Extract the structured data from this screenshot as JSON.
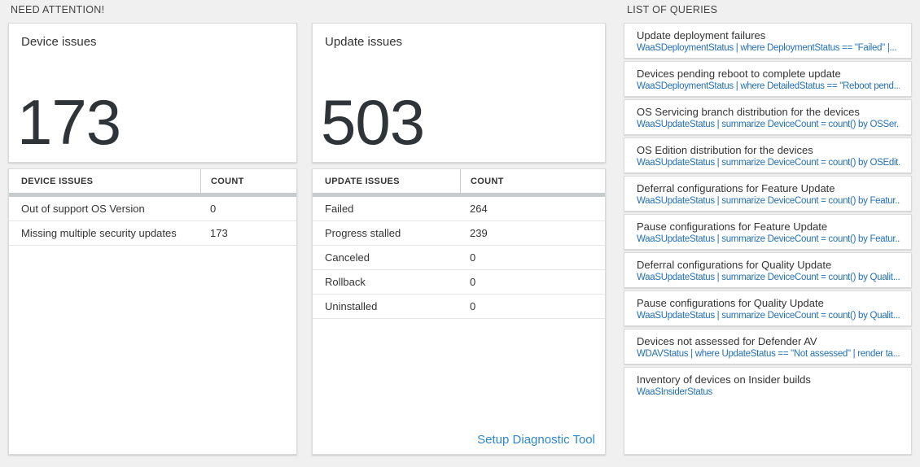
{
  "sections": {
    "need_attention_label": "NEED ATTENTION!",
    "list_of_queries_label": "LIST OF QUERIES"
  },
  "device_card": {
    "title": "Device issues",
    "count": "173",
    "table": {
      "headers": [
        "DEVICE ISSUES",
        "COUNT"
      ],
      "rows": [
        {
          "label": "Out of support OS Version",
          "count": "0"
        },
        {
          "label": "Missing multiple security updates",
          "count": "173"
        }
      ]
    }
  },
  "update_card": {
    "title": "Update issues",
    "count": "503",
    "table": {
      "headers": [
        "UPDATE ISSUES",
        "COUNT"
      ],
      "rows": [
        {
          "label": "Failed",
          "count": "264"
        },
        {
          "label": "Progress stalled",
          "count": "239"
        },
        {
          "label": "Canceled",
          "count": "0"
        },
        {
          "label": "Rollback",
          "count": "0"
        },
        {
          "label": "Uninstalled",
          "count": "0"
        }
      ]
    },
    "link_label": "Setup Diagnostic Tool"
  },
  "queries": [
    {
      "title": "Update deployment failures",
      "query": "WaaSDeploymentStatus | where DeploymentStatus == \"Failed\" |..."
    },
    {
      "title": "Devices pending reboot to complete update",
      "query": "WaaSDeploymentStatus | where DetailedStatus == \"Reboot pend..."
    },
    {
      "title": "OS Servicing branch distribution for the devices",
      "query": "WaaSUpdateStatus | summarize DeviceCount = count() by OSSer..."
    },
    {
      "title": "OS Edition distribution for the devices",
      "query": "WaaSUpdateStatus | summarize DeviceCount = count() by OSEdit..."
    },
    {
      "title": "Deferral configurations for Feature Update",
      "query": "WaaSUpdateStatus | summarize DeviceCount = count() by Featur..."
    },
    {
      "title": "Pause configurations for Feature Update",
      "query": "WaaSUpdateStatus | summarize DeviceCount = count() by Featur..."
    },
    {
      "title": "Deferral configurations for Quality Update",
      "query": "WaaSUpdateStatus | summarize DeviceCount = count() by Qualit..."
    },
    {
      "title": "Pause configurations for Quality Update",
      "query": "WaaSUpdateStatus | summarize DeviceCount = count() by Qualit..."
    },
    {
      "title": "Devices not assessed for Defender AV",
      "query": "WDAVStatus | where UpdateStatus == \"Not assessed\" | render ta..."
    },
    {
      "title": "Inventory of devices on Insider builds",
      "query": "WaaSInsiderStatus"
    }
  ],
  "colors": {
    "query_blue": "#2470b3",
    "link_blue": "#2e86d0",
    "big_number": "#2f3438",
    "background": "#f0f0f0"
  }
}
